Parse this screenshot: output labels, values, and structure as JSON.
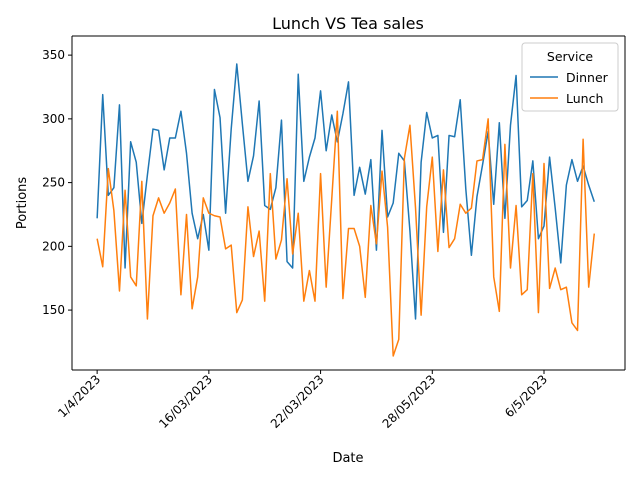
{
  "chart_data": {
    "type": "line",
    "title": "Lunch VS Tea sales",
    "xlabel": "Date",
    "ylabel": "Portions",
    "x_tick_labels": [
      "1/4/2023",
      "16/03/2023",
      "22/03/2023",
      "28/05/2023",
      "6/5/2023"
    ],
    "x_tick_positions": [
      0,
      20,
      40,
      60,
      80
    ],
    "y_ticks": [
      150,
      200,
      250,
      300,
      350
    ],
    "ylim": [
      103,
      365
    ],
    "xlim": [
      -4.5,
      94.5
    ],
    "grid": false,
    "legend": {
      "title": "Service",
      "position": "top-right"
    },
    "series": [
      {
        "name": "Dinner",
        "color": "#1f77b4",
        "values": [
          222,
          319,
          240,
          246,
          311,
          183,
          282,
          266,
          218,
          256,
          292,
          291,
          260,
          285,
          285,
          306,
          273,
          226,
          206,
          225,
          197,
          323,
          301,
          226,
          292,
          343,
          296,
          251,
          271,
          314,
          232,
          229,
          246,
          299,
          188,
          183,
          335,
          251,
          270,
          285,
          322,
          275,
          303,
          282,
          304,
          329,
          240,
          262,
          241,
          268,
          197,
          291,
          223,
          234,
          273,
          267,
          212,
          143,
          266,
          305,
          285,
          287,
          211,
          287,
          286,
          315,
          245,
          193,
          239,
          264,
          290,
          233,
          297,
          222,
          295,
          334,
          231,
          236,
          267,
          206,
          216,
          270,
          230,
          187,
          248,
          268,
          251,
          263,
          248,
          235
        ],
        "x": [
          0,
          1,
          2,
          3,
          4,
          5,
          6,
          7,
          8,
          9,
          10,
          11,
          12,
          13,
          14,
          15,
          16,
          17,
          18,
          19,
          20,
          21,
          22,
          23,
          24,
          25,
          26,
          27,
          28,
          29,
          30,
          31,
          32,
          33,
          34,
          35,
          36,
          37,
          38,
          39,
          40,
          41,
          42,
          43,
          44,
          45,
          46,
          47,
          48,
          49,
          50,
          51,
          52,
          53,
          54,
          55,
          56,
          57,
          58,
          59,
          60,
          61,
          62,
          63,
          64,
          65,
          66,
          67,
          68,
          69,
          70,
          71,
          72,
          73,
          74,
          75,
          76,
          77,
          78,
          79,
          80,
          81,
          82,
          83,
          84,
          85,
          86,
          87,
          88,
          89
        ]
      },
      {
        "name": "Lunch",
        "color": "#ff7f0e",
        "values": [
          206,
          184,
          261,
          228,
          165,
          244,
          176,
          169,
          251,
          143,
          224,
          238,
          226,
          234,
          245,
          162,
          225,
          151,
          176,
          238,
          226,
          224,
          223,
          198,
          201,
          148,
          158,
          231,
          192,
          212,
          157,
          257,
          190,
          205,
          253,
          194,
          226,
          157,
          181,
          157,
          257,
          168,
          237,
          306,
          159,
          214,
          214,
          200,
          160,
          232,
          202,
          259,
          215,
          114,
          127,
          269,
          295,
          230,
          146,
          231,
          270,
          196,
          260,
          199,
          206,
          233,
          226,
          230,
          267,
          268,
          300,
          176,
          149,
          280,
          183,
          232,
          162,
          166,
          257,
          148,
          265,
          167,
          183,
          166,
          168,
          140,
          134,
          284,
          168,
          210
        ],
        "x": [
          0,
          1,
          2,
          3,
          4,
          5,
          6,
          7,
          8,
          9,
          10,
          11,
          12,
          13,
          14,
          15,
          16,
          17,
          18,
          19,
          20,
          21,
          22,
          23,
          24,
          25,
          26,
          27,
          28,
          29,
          30,
          31,
          32,
          33,
          34,
          35,
          36,
          37,
          38,
          39,
          40,
          41,
          42,
          43,
          44,
          45,
          46,
          47,
          48,
          49,
          50,
          51,
          52,
          53,
          54,
          55,
          56,
          57,
          58,
          59,
          60,
          61,
          62,
          63,
          64,
          65,
          66,
          67,
          68,
          69,
          70,
          71,
          72,
          73,
          74,
          75,
          76,
          77,
          78,
          79,
          80,
          81,
          82,
          83,
          84,
          85,
          86,
          87,
          88,
          89
        ]
      }
    ]
  }
}
